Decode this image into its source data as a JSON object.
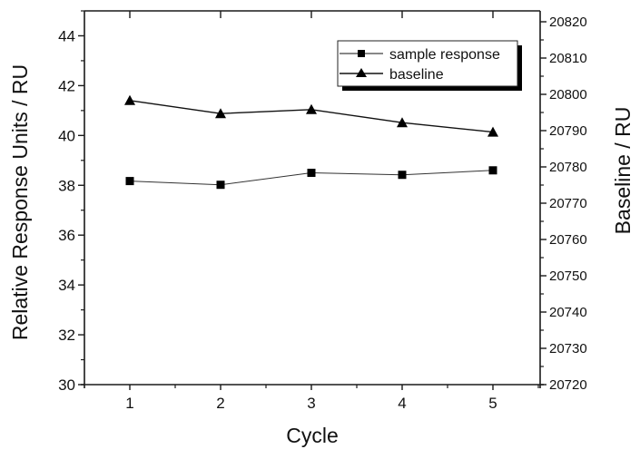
{
  "chart_data": {
    "type": "line",
    "title": "",
    "xlabel": "Cycle",
    "ylabel": "Relative Response Units / RU",
    "y2label": "Baseline / RU",
    "x": [
      1,
      2,
      3,
      4,
      5
    ],
    "xticks": [
      "1",
      "2",
      "3",
      "4",
      "5"
    ],
    "xlim": [
      0.5,
      5.52
    ],
    "ylim": [
      30,
      45
    ],
    "yticks": [
      "30",
      "32",
      "34",
      "36",
      "38",
      "40",
      "42",
      "44"
    ],
    "y2lim": [
      20720,
      20823
    ],
    "y2ticks": [
      "20720",
      "20730",
      "20740",
      "20750",
      "20760",
      "20770",
      "20780",
      "20790",
      "20800",
      "20810",
      "20820"
    ],
    "grid": false,
    "legend_position": "top-right",
    "series": [
      {
        "name": "sample response",
        "axis": "left",
        "marker": "square",
        "values": [
          38.17,
          38.02,
          38.5,
          38.42,
          38.6
        ]
      },
      {
        "name": "baseline",
        "axis": "right",
        "marker": "triangle",
        "values": [
          20798.3,
          20794.7,
          20795.8,
          20792.2,
          20789.6
        ]
      }
    ]
  }
}
